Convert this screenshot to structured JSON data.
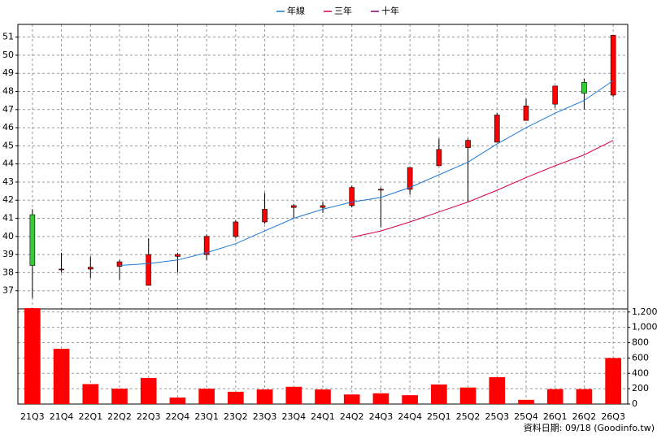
{
  "chart_data": {
    "type": "candlestick",
    "categories": [
      "21Q3",
      "21Q4",
      "22Q1",
      "22Q2",
      "22Q3",
      "22Q4",
      "23Q1",
      "23Q2",
      "23Q3",
      "23Q4",
      "24Q1",
      "24Q2",
      "24Q3",
      "24Q4",
      "25Q1",
      "25Q2",
      "25Q3",
      "25Q4",
      "26Q1",
      "26Q2",
      "26Q3"
    ],
    "ohlc": {
      "up_color": "#ff0000",
      "down_color": "#33cc33",
      "open": [
        41.2,
        38.2,
        38.2,
        38.35,
        37.3,
        38.9,
        39.0,
        40.0,
        40.8,
        41.6,
        41.6,
        41.7,
        42.6,
        42.6,
        43.9,
        44.9,
        45.2,
        46.4,
        47.3,
        48.5,
        47.8
      ],
      "high": [
        41.5,
        39.1,
        38.9,
        38.7,
        39.9,
        39.1,
        40.1,
        40.9,
        42.4,
        41.8,
        41.9,
        42.8,
        42.7,
        43.8,
        45.4,
        45.4,
        46.8,
        47.6,
        48.3,
        48.7,
        51.1
      ],
      "low": [
        36.6,
        38.0,
        37.7,
        37.6,
        37.3,
        38.0,
        38.7,
        39.9,
        40.7,
        41.0,
        41.3,
        41.6,
        40.5,
        42.3,
        43.9,
        41.9,
        45.2,
        46.4,
        47.1,
        47.0,
        47.7
      ],
      "close": [
        38.4,
        38.2,
        38.3,
        38.6,
        39.0,
        39.0,
        40.0,
        40.8,
        41.5,
        41.7,
        41.7,
        42.7,
        42.6,
        43.8,
        44.8,
        45.3,
        46.7,
        47.2,
        48.3,
        47.9,
        51.1
      ]
    },
    "series": [
      {
        "name": "年線",
        "color": "#1e78d2",
        "values": [
          null,
          null,
          null,
          38.4,
          38.5,
          38.7,
          39.1,
          39.6,
          40.3,
          41.0,
          41.5,
          41.9,
          42.15,
          42.7,
          43.4,
          44.1,
          45.1,
          46.0,
          46.8,
          47.5,
          48.6
        ]
      },
      {
        "name": "三年",
        "color": "#d80040",
        "values": [
          null,
          null,
          null,
          null,
          null,
          null,
          null,
          null,
          null,
          null,
          null,
          39.95,
          40.3,
          40.8,
          41.35,
          41.9,
          42.55,
          43.25,
          43.9,
          44.5,
          45.3
        ]
      },
      {
        "name": "十年",
        "color": "#800080",
        "values": [
          null,
          null,
          null,
          null,
          null,
          null,
          null,
          null,
          null,
          null,
          null,
          null,
          null,
          null,
          null,
          null,
          null,
          null,
          null,
          null,
          null
        ]
      }
    ],
    "ylim": [
      36.0,
      51.7
    ],
    "yticks": [
      37,
      38,
      39,
      40,
      41,
      42,
      43,
      44,
      45,
      46,
      47,
      48,
      49,
      50,
      51
    ],
    "volume": {
      "color": "#ff0000",
      "values": [
        1250,
        720,
        260,
        200,
        340,
        85,
        200,
        160,
        190,
        225,
        190,
        125,
        140,
        115,
        255,
        215,
        350,
        55,
        195,
        195,
        600
      ]
    },
    "y2lim": [
      0,
      1240
    ],
    "y2ticks": [
      0,
      200,
      400,
      600,
      800,
      {
        "value": 1000,
        "label": "1,000"
      },
      {
        "value": 1200,
        "label": "1,200"
      }
    ],
    "grid": true,
    "footer": "資料日期: 09/18 (Goodinfo.tw)"
  }
}
